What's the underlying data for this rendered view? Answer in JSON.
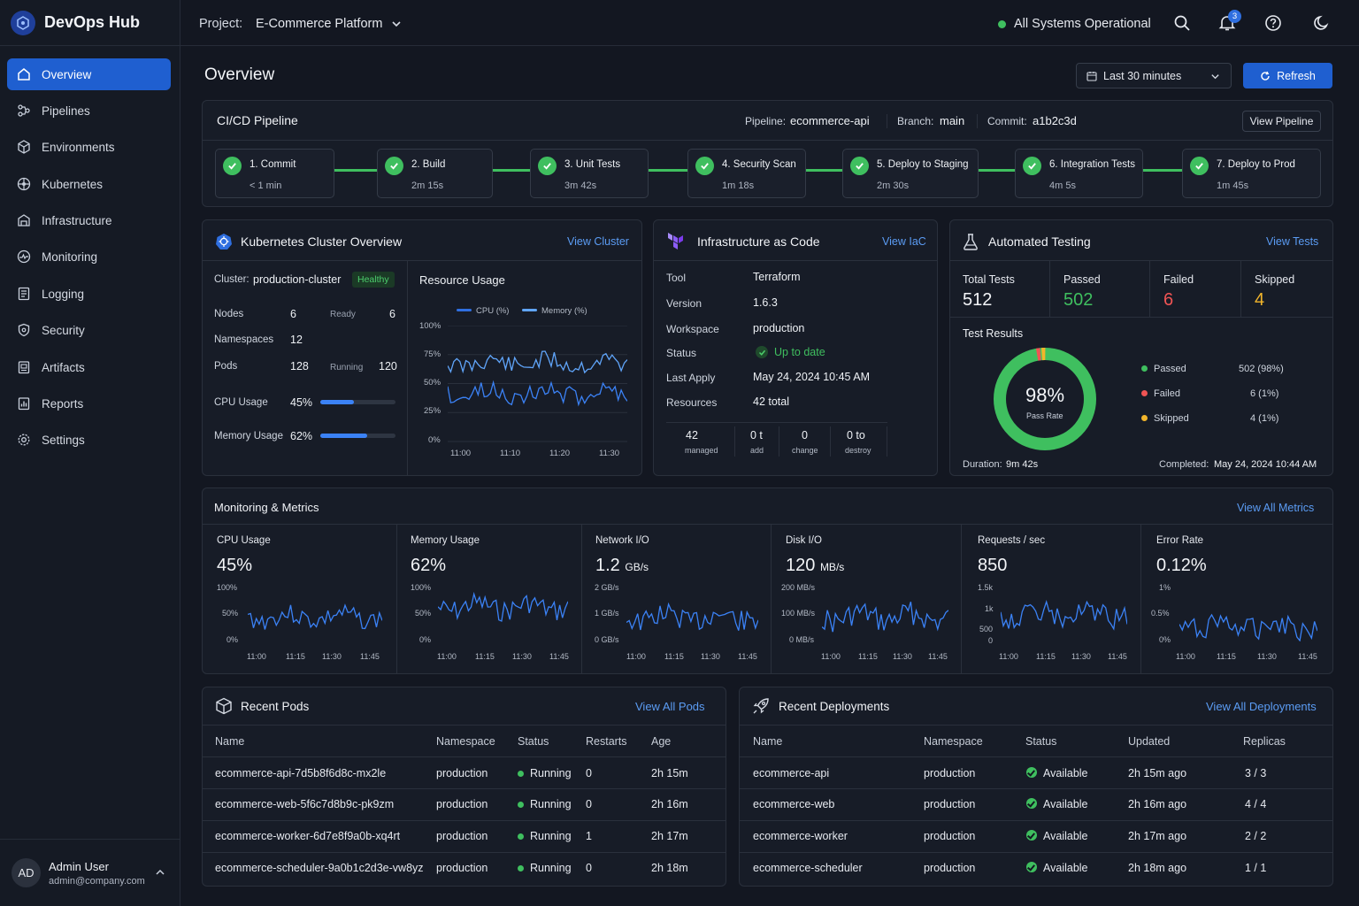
{
  "app": {
    "title": "DevOps Hub"
  },
  "header": {
    "project_label": "Project:",
    "project_name": "E-Commerce Platform",
    "status": "All Systems Operational",
    "notif_count": "3"
  },
  "sidebar": {
    "items": [
      {
        "label": "Overview",
        "icon": "overview-icon"
      },
      {
        "label": "Pipelines",
        "icon": "pipelines-icon"
      },
      {
        "label": "Environments",
        "icon": "environments-icon"
      },
      {
        "label": "Kubernetes",
        "icon": "kubernetes-icon"
      },
      {
        "label": "Infrastructure",
        "icon": "infrastructure-icon"
      },
      {
        "label": "Monitoring",
        "icon": "monitoring-icon"
      },
      {
        "label": "Logging",
        "icon": "logging-icon"
      },
      {
        "label": "Security",
        "icon": "security-icon"
      },
      {
        "label": "Artifacts",
        "icon": "artifacts-icon"
      },
      {
        "label": "Reports",
        "icon": "reports-icon"
      },
      {
        "label": "Settings",
        "icon": "settings-icon"
      }
    ],
    "user": {
      "initials": "AD",
      "name": "Admin User",
      "email": "admin@company.com"
    }
  },
  "page": {
    "title": "Overview",
    "time_range": "Last 30 minutes",
    "refresh_label": "Refresh"
  },
  "pipeline": {
    "title": "CI/CD Pipeline",
    "pipeline_label": "Pipeline:",
    "pipeline_value": "ecommerce-api",
    "branch_label": "Branch:",
    "branch_value": "main",
    "commit_label": "Commit:",
    "commit_value": "a1b2c3d",
    "view_label": "View Pipeline",
    "stages": [
      {
        "name": "1. Commit",
        "time": "< 1 min"
      },
      {
        "name": "2. Build",
        "time": "2m 15s"
      },
      {
        "name": "3. Unit Tests",
        "time": "3m 42s"
      },
      {
        "name": "4. Security Scan",
        "time": "1m 18s"
      },
      {
        "name": "5. Deploy to Staging",
        "time": "2m 30s"
      },
      {
        "name": "6. Integration Tests",
        "time": "4m 5s"
      },
      {
        "name": "7. Deploy to Prod",
        "time": "1m 45s"
      }
    ]
  },
  "k8s": {
    "title": "Kubernetes Cluster Overview",
    "link": "View Cluster",
    "cluster_label": "Cluster:",
    "cluster_name": "production-cluster",
    "health": "Healthy",
    "nodes_label": "Nodes",
    "nodes": "6",
    "ready_label": "Ready",
    "ready": "6",
    "namespaces_label": "Namespaces",
    "namespaces": "12",
    "pods_label": "Pods",
    "pods": "128",
    "running_label": "Running",
    "running": "120",
    "cpu_label": "CPU Usage",
    "cpu": "45%",
    "cpu_frac": 0.45,
    "mem_label": "Memory Usage",
    "mem": "62%",
    "mem_frac": 0.62,
    "chart": {
      "title": "Resource Usage",
      "legend": [
        "CPU (%)",
        "Memory (%)"
      ],
      "yticks": [
        "100%",
        "75%",
        "50%",
        "25%",
        "0%"
      ],
      "xticks": [
        "11:00",
        "11:10",
        "11:20",
        "11:30"
      ]
    }
  },
  "iac": {
    "title": "Infrastructure as Code",
    "link": "View IaC",
    "rows": [
      {
        "label": "Tool",
        "value": "Terraform"
      },
      {
        "label": "Version",
        "value": "1.6.3"
      },
      {
        "label": "Workspace",
        "value": "production"
      },
      {
        "label": "Status",
        "value": "Up to date"
      },
      {
        "label": "Last Apply",
        "value": "May 24, 2024 10:45 AM"
      },
      {
        "label": "Resources",
        "value": "42 total"
      }
    ],
    "stats": [
      {
        "value": "42",
        "label": "managed"
      },
      {
        "value": "0 t",
        "label": "add"
      },
      {
        "value": "0",
        "label": "change"
      },
      {
        "value": "0 to",
        "label": "destroy"
      }
    ]
  },
  "testing": {
    "title": "Automated Testing",
    "link": "View Tests",
    "total_label": "Total Tests",
    "total": "512",
    "passed_label": "Passed",
    "passed": "502",
    "failed_label": "Failed",
    "failed": "6",
    "skipped_label": "Skipped",
    "skipped": "4",
    "results_label": "Test Results",
    "pass_rate": "98%",
    "pass_rate_label": "Pass Rate",
    "legend": [
      {
        "name": "Passed",
        "value": "502 (98%)",
        "color": "#3fbf5f"
      },
      {
        "name": "Failed",
        "value": "6 (1%)",
        "color": "#f05454"
      },
      {
        "name": "Skipped",
        "value": "4 (1%)",
        "color": "#f2b52b"
      }
    ],
    "duration_label": "Duration:",
    "duration": "9m 42s",
    "completed_label": "Completed:",
    "completed": "May 24, 2024 10:44 AM"
  },
  "monitoring": {
    "title": "Monitoring & Metrics",
    "link": "View All Metrics",
    "xticks": [
      "11:00",
      "11:15",
      "11:30",
      "11:45"
    ],
    "metrics": [
      {
        "title": "CPU Usage",
        "value": "45%",
        "unit": "",
        "yticks": [
          "100%",
          "50%",
          "0%"
        ]
      },
      {
        "title": "Memory Usage",
        "value": "62%",
        "unit": "",
        "yticks": [
          "100%",
          "50%",
          "0%"
        ]
      },
      {
        "title": "Network I/O",
        "value": "1.2",
        "unit": "GB/s",
        "yticks": [
          "2 GB/s",
          "1 GB/s",
          "0 GB/s"
        ]
      },
      {
        "title": "Disk I/O",
        "value": "120",
        "unit": "MB/s",
        "yticks": [
          "200 MB/s",
          "100 MB/s",
          "0 MB/s"
        ]
      },
      {
        "title": "Requests / sec",
        "value": "850",
        "unit": "",
        "yticks": [
          "1.5k",
          "1k",
          "500",
          "0"
        ]
      },
      {
        "title": "Error Rate",
        "value": "0.12%",
        "unit": "",
        "yticks": [
          "1%",
          "0.5%",
          "0%"
        ]
      }
    ]
  },
  "pods": {
    "title": "Recent Pods",
    "link": "View All Pods",
    "headers": [
      "Name",
      "Namespace",
      "Status",
      "Restarts",
      "Age"
    ],
    "rows": [
      [
        "ecommerce-api-7d5b8f6d8c-mx2le",
        "production",
        "Running",
        "0",
        "2h 15m"
      ],
      [
        "ecommerce-web-5f6c7d8b9c-pk9zm",
        "production",
        "Running",
        "0",
        "2h 16m"
      ],
      [
        "ecommerce-worker-6d7e8f9a0b-xq4rt",
        "production",
        "Running",
        "1",
        "2h 17m"
      ],
      [
        "ecommerce-scheduler-9a0b1c2d3e-vw8yz",
        "production",
        "Running",
        "0",
        "2h 18m"
      ]
    ]
  },
  "deployments": {
    "title": "Recent Deployments",
    "link": "View All Deployments",
    "headers": [
      "Name",
      "Namespace",
      "Status",
      "Updated",
      "Replicas"
    ],
    "rows": [
      [
        "ecommerce-api",
        "production",
        "Available",
        "2h 15m ago",
        "3 / 3"
      ],
      [
        "ecommerce-web",
        "production",
        "Available",
        "2h 16m ago",
        "4 / 4"
      ],
      [
        "ecommerce-worker",
        "production",
        "Available",
        "2h 17m ago",
        "2 / 2"
      ],
      [
        "ecommerce-scheduler",
        "production",
        "Available",
        "2h 18m ago",
        "1 / 1"
      ]
    ]
  },
  "colors": {
    "accent": "#1f5fd0",
    "link": "#5b9cf4",
    "success": "#3fbf5f",
    "danger": "#f05454",
    "warning": "#f2b52b",
    "chart_line": "#3b82f6"
  }
}
